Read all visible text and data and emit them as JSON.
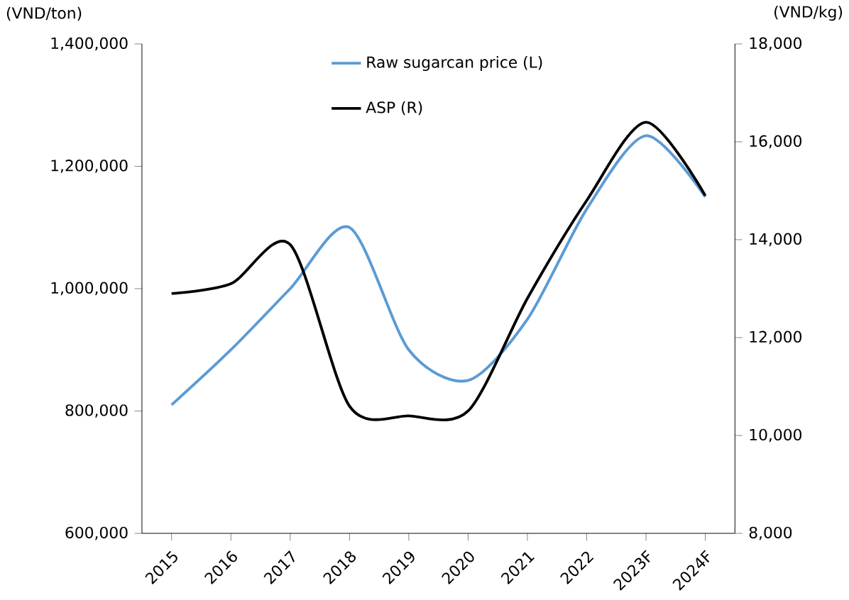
{
  "chart_data": {
    "type": "line",
    "ylabel": "(VND/ton)",
    "y2label": "(VND/kg)",
    "categories": [
      "2015",
      "2016",
      "2017",
      "2018",
      "2019",
      "2020",
      "2021",
      "2022",
      "2023F",
      "2024F"
    ],
    "series": [
      {
        "name": "Raw sugarcan price (L)",
        "color": "#5b9bd5",
        "values": [
          810000,
          900000,
          1000000,
          1100000,
          900000,
          850000,
          950000,
          1130000,
          1250000,
          1150000
        ]
      },
      {
        "name": "ASP (R)",
        "color": "#000000",
        "axis": "y2",
        "values": [
          12900,
          13100,
          13900,
          10600,
          10400,
          10500,
          12800,
          14800,
          16400,
          14900
        ]
      }
    ],
    "ylim": [
      600000,
      1400000
    ],
    "yticks": [
      {
        "value": 600000,
        "label": "600,000"
      },
      {
        "value": 800000,
        "label": "800,000"
      },
      {
        "value": 1000000,
        "label": "1,000,000"
      },
      {
        "value": 1200000,
        "label": "1,200,000"
      },
      {
        "value": 1400000,
        "label": "1,400,000"
      }
    ],
    "y2lim": [
      8000,
      18000
    ],
    "y2ticks": [
      {
        "value": 8000,
        "label": "8,000"
      },
      {
        "value": 10000,
        "label": "10,000"
      },
      {
        "value": 12000,
        "label": "12,000"
      },
      {
        "value": 14000,
        "label": "14,000"
      },
      {
        "value": 16000,
        "label": "16,000"
      },
      {
        "value": 18000,
        "label": "18,000"
      }
    ],
    "grid": false,
    "legend": "top",
    "marker": "none",
    "line_style": "solid"
  }
}
